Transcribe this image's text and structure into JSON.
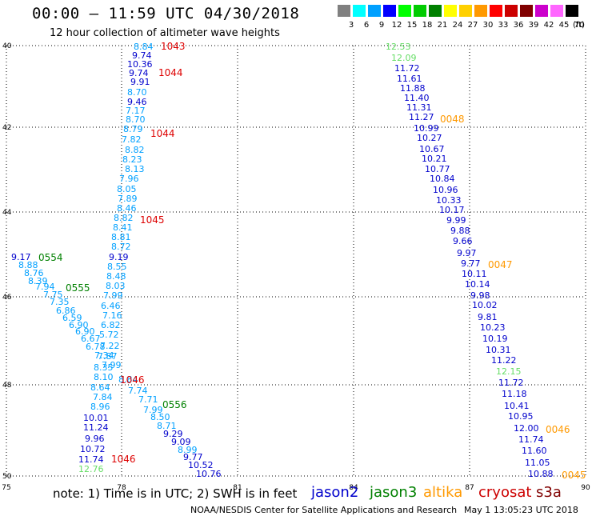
{
  "header": {
    "title": "00:00 — 11:59 UTC 04/30/2018",
    "subtitle": "12 hour collection of altimeter wave heights"
  },
  "colorbar": {
    "unit": "(ft)",
    "entries": [
      {
        "label": "3",
        "color": "#808080"
      },
      {
        "label": "6",
        "color": "#00ffff"
      },
      {
        "label": "9",
        "color": "#00a0ff"
      },
      {
        "label": "12",
        "color": "#0000ff"
      },
      {
        "label": "15",
        "color": "#00ff00"
      },
      {
        "label": "18",
        "color": "#00cc00"
      },
      {
        "label": "21",
        "color": "#008000"
      },
      {
        "label": "24",
        "color": "#ffff00"
      },
      {
        "label": "27",
        "color": "#ffd000"
      },
      {
        "label": "30",
        "color": "#ff9900"
      },
      {
        "label": "33",
        "color": "#ff0000"
      },
      {
        "label": "36",
        "color": "#cc0000"
      },
      {
        "label": "39",
        "color": "#800000"
      },
      {
        "label": "42",
        "color": "#cc00cc"
      },
      {
        "label": "45",
        "color": "#ff66ff"
      },
      {
        "label": "70",
        "color": "#000000"
      }
    ]
  },
  "axes": {
    "x_ticks": [
      "75",
      "78",
      "81",
      "84",
      "87",
      "90"
    ],
    "y_ticks": [
      "40",
      "42",
      "44",
      "46",
      "48",
      "50"
    ],
    "x_range": [
      75,
      90
    ],
    "y_range": [
      40,
      50
    ]
  },
  "footer": {
    "note": "note: 1) Time is in UTC; 2) SWH is in feet",
    "satellites": [
      {
        "name": "jason2",
        "color": "#0000cc"
      },
      {
        "name": "jason3",
        "color": "#008000"
      },
      {
        "name": "altika",
        "color": "#ff9900"
      },
      {
        "name": "cryosat",
        "color": "#cc0000"
      },
      {
        "name": "s3a",
        "color": "#800000"
      }
    ],
    "credit": "NOAA/NESDIS Center for Satellite Applications and Research",
    "timestamp": "May  1 13:05:23 UTC 2018"
  },
  "tracks": {
    "track1": [
      {
        "v": "8.84",
        "c": "#00a0ff"
      },
      {
        "v": "9.74",
        "c": "#0000cc"
      },
      {
        "v": "10.36",
        "c": "#0000cc"
      },
      {
        "v": "9.74",
        "c": "#0000cc"
      },
      {
        "v": "9.91",
        "c": "#0000cc"
      },
      {
        "v": "8.70",
        "c": "#00a0ff"
      },
      {
        "v": "9.46",
        "c": "#0000cc"
      },
      {
        "v": "7.17",
        "c": "#00a0ff"
      },
      {
        "v": "8.70",
        "c": "#00a0ff"
      },
      {
        "v": "8.79",
        "c": "#00a0ff"
      },
      {
        "v": "7.82",
        "c": "#00a0ff"
      },
      {
        "v": "8.82",
        "c": "#00a0ff"
      },
      {
        "v": "8.23",
        "c": "#00a0ff"
      },
      {
        "v": "8.13",
        "c": "#00a0ff"
      },
      {
        "v": "7.96",
        "c": "#00a0ff"
      },
      {
        "v": "8.05",
        "c": "#00a0ff"
      },
      {
        "v": "7.89",
        "c": "#00a0ff"
      },
      {
        "v": "8.46",
        "c": "#00a0ff"
      },
      {
        "v": "8.82",
        "c": "#00a0ff"
      },
      {
        "v": "8.41",
        "c": "#00a0ff"
      },
      {
        "v": "8.81",
        "c": "#00a0ff"
      },
      {
        "v": "8.72",
        "c": "#00a0ff"
      },
      {
        "v": "9.19",
        "c": "#0000cc"
      },
      {
        "v": "8.55",
        "c": "#00a0ff"
      },
      {
        "v": "8.48",
        "c": "#00a0ff"
      },
      {
        "v": "8.03",
        "c": "#00a0ff"
      },
      {
        "v": "7.99",
        "c": "#00a0ff"
      },
      {
        "v": "6.46",
        "c": "#00a0ff"
      },
      {
        "v": "7.16",
        "c": "#00a0ff"
      },
      {
        "v": "6.82",
        "c": "#00a0ff"
      },
      {
        "v": "5.72",
        "c": "#00a0ff"
      },
      {
        "v": "7.22",
        "c": "#00a0ff"
      },
      {
        "v": "7.87",
        "c": "#00a0ff"
      },
      {
        "v": "8.35",
        "c": "#00a0ff"
      },
      {
        "v": "8.10",
        "c": "#00a0ff"
      },
      {
        "v": "8.64",
        "c": "#00a0ff"
      },
      {
        "v": "7.84",
        "c": "#00a0ff"
      },
      {
        "v": "8.96",
        "c": "#00a0ff"
      },
      {
        "v": "10.01",
        "c": "#0000cc"
      },
      {
        "v": "11.24",
        "c": "#0000cc"
      },
      {
        "v": "9.96",
        "c": "#0000cc"
      },
      {
        "v": "10.72",
        "c": "#0000cc"
      },
      {
        "v": "11.74",
        "c": "#0000cc"
      },
      {
        "v": "12.76",
        "c": "#66dd66"
      }
    ],
    "track2": [
      {
        "v": "12.53",
        "c": "#66dd66"
      },
      {
        "v": "12.09",
        "c": "#66dd66"
      },
      {
        "v": "11.72",
        "c": "#0000cc"
      },
      {
        "v": "11.61",
        "c": "#0000cc"
      },
      {
        "v": "11.88",
        "c": "#0000cc"
      },
      {
        "v": "11.40",
        "c": "#0000cc"
      },
      {
        "v": "11.31",
        "c": "#0000cc"
      },
      {
        "v": "11.27",
        "c": "#0000cc"
      },
      {
        "v": "10.99",
        "c": "#0000cc"
      },
      {
        "v": "10.27",
        "c": "#0000cc"
      },
      {
        "v": "10.67",
        "c": "#0000cc"
      },
      {
        "v": "10.21",
        "c": "#0000cc"
      },
      {
        "v": "10.77",
        "c": "#0000cc"
      },
      {
        "v": "10.84",
        "c": "#0000cc"
      },
      {
        "v": "10.96",
        "c": "#0000cc"
      },
      {
        "v": "10.33",
        "c": "#0000cc"
      },
      {
        "v": "10.17",
        "c": "#0000cc"
      },
      {
        "v": "9.99",
        "c": "#0000cc"
      },
      {
        "v": "9.88",
        "c": "#0000cc"
      },
      {
        "v": "9.66",
        "c": "#0000cc"
      },
      {
        "v": "9.97",
        "c": "#0000cc"
      },
      {
        "v": "9.77",
        "c": "#0000cc"
      },
      {
        "v": "10.11",
        "c": "#0000cc"
      },
      {
        "v": "10.14",
        "c": "#0000cc"
      },
      {
        "v": "9.98",
        "c": "#0000cc"
      },
      {
        "v": "10.02",
        "c": "#0000cc"
      },
      {
        "v": "9.81",
        "c": "#0000cc"
      },
      {
        "v": "10.23",
        "c": "#0000cc"
      },
      {
        "v": "10.19",
        "c": "#0000cc"
      },
      {
        "v": "10.31",
        "c": "#0000cc"
      },
      {
        "v": "11.22",
        "c": "#0000cc"
      },
      {
        "v": "12.15",
        "c": "#66dd66"
      },
      {
        "v": "11.72",
        "c": "#0000cc"
      },
      {
        "v": "11.18",
        "c": "#0000cc"
      },
      {
        "v": "10.41",
        "c": "#0000cc"
      },
      {
        "v": "10.95",
        "c": "#0000cc"
      },
      {
        "v": "12.00",
        "c": "#0000cc"
      },
      {
        "v": "11.74",
        "c": "#0000cc"
      },
      {
        "v": "11.60",
        "c": "#0000cc"
      },
      {
        "v": "11.05",
        "c": "#0000cc"
      },
      {
        "v": "10.88",
        "c": "#0000cc"
      }
    ],
    "track3": [
      {
        "v": "9.17",
        "c": "#0000cc"
      },
      {
        "v": "8.88",
        "c": "#00a0ff"
      },
      {
        "v": "8.76",
        "c": "#00a0ff"
      },
      {
        "v": "8.39",
        "c": "#00a0ff"
      },
      {
        "v": "7.94",
        "c": "#00a0ff"
      },
      {
        "v": "7.75",
        "c": "#00a0ff"
      },
      {
        "v": "7.35",
        "c": "#00a0ff"
      },
      {
        "v": "6.86",
        "c": "#00a0ff"
      },
      {
        "v": "6.59",
        "c": "#00a0ff"
      },
      {
        "v": "6.90",
        "c": "#00a0ff"
      },
      {
        "v": "6.90",
        "c": "#00a0ff"
      },
      {
        "v": "6.67",
        "c": "#00a0ff"
      },
      {
        "v": "6.78",
        "c": "#00a0ff"
      },
      {
        "v": "7.34",
        "c": "#00a0ff"
      },
      {
        "v": "7.99",
        "c": "#00a0ff"
      },
      {
        "v": "8.84",
        "c": "#00a0ff"
      },
      {
        "v": "7.74",
        "c": "#00a0ff"
      },
      {
        "v": "7.71",
        "c": "#00a0ff"
      },
      {
        "v": "7.99",
        "c": "#00a0ff"
      },
      {
        "v": "8.50",
        "c": "#00a0ff"
      },
      {
        "v": "8.71",
        "c": "#00a0ff"
      },
      {
        "v": "9.29",
        "c": "#0000cc"
      },
      {
        "v": "9.09",
        "c": "#0000cc"
      },
      {
        "v": "8.99",
        "c": "#00a0ff"
      },
      {
        "v": "9.77",
        "c": "#0000cc"
      },
      {
        "v": "10.52",
        "c": "#0000cc"
      },
      {
        "v": "10.76",
        "c": "#0000cc"
      }
    ],
    "labels": [
      {
        "v": "1043",
        "c": "#dd0000"
      },
      {
        "v": "1044",
        "c": "#dd0000"
      },
      {
        "v": "1044",
        "c": "#dd0000"
      },
      {
        "v": "1045",
        "c": "#dd0000"
      },
      {
        "v": "1046",
        "c": "#dd0000"
      },
      {
        "v": "1046",
        "c": "#dd0000"
      },
      {
        "v": "0048",
        "c": "#ff9900"
      },
      {
        "v": "0047",
        "c": "#ff9900"
      },
      {
        "v": "0046",
        "c": "#ff9900"
      },
      {
        "v": "0045",
        "c": "#ff9900"
      },
      {
        "v": "0554",
        "c": "#008000"
      },
      {
        "v": "0555",
        "c": "#008000"
      },
      {
        "v": "0556",
        "c": "#008000"
      }
    ]
  }
}
